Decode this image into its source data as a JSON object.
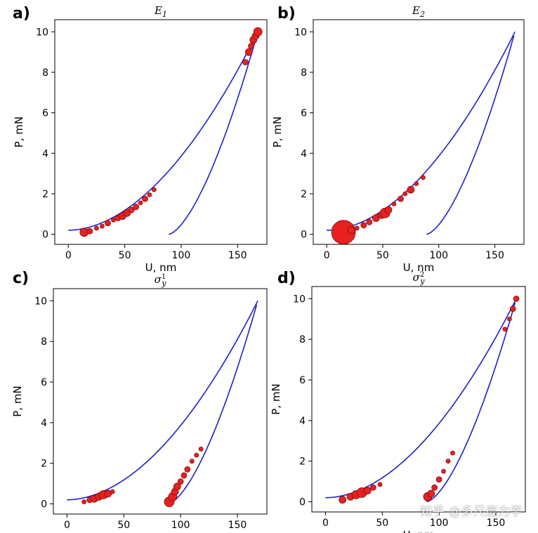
{
  "watermark": "知乎 @多尺度力学",
  "chart_data": [
    {
      "type": "scatter",
      "panel_label": "a)",
      "title_symbol": "E",
      "title_accent": "‾",
      "title_sub": "1",
      "title_sup": "",
      "xlabel": "U, nm",
      "ylabel": "P, mN",
      "xlim": [
        -12,
        176
      ],
      "ylim": [
        -0.5,
        10.6
      ],
      "xticks": [
        0,
        50,
        100,
        150
      ],
      "yticks": [
        0,
        2,
        4,
        6,
        8,
        10
      ],
      "grid": false,
      "line_color": "#1f1fcc",
      "marker_color": "#e82020",
      "loading_curve": {
        "u_max": 168,
        "p_max": 10
      },
      "unloading_curve": {
        "u_start": 89,
        "p_max": 10
      },
      "markers": [
        {
          "u": 14,
          "p": 0.1,
          "size": 6
        },
        {
          "u": 19,
          "p": 0.15,
          "size": 4
        },
        {
          "u": 25,
          "p": 0.3,
          "size": 3
        },
        {
          "u": 30,
          "p": 0.4,
          "size": 3
        },
        {
          "u": 35,
          "p": 0.55,
          "size": 4
        },
        {
          "u": 40,
          "p": 0.7,
          "size": 3
        },
        {
          "u": 44,
          "p": 0.8,
          "size": 4
        },
        {
          "u": 48,
          "p": 0.9,
          "size": 5
        },
        {
          "u": 52,
          "p": 1.05,
          "size": 5
        },
        {
          "u": 56,
          "p": 1.2,
          "size": 4
        },
        {
          "u": 60,
          "p": 1.35,
          "size": 4
        },
        {
          "u": 64,
          "p": 1.55,
          "size": 3
        },
        {
          "u": 68,
          "p": 1.75,
          "size": 4
        },
        {
          "u": 72,
          "p": 1.95,
          "size": 3
        },
        {
          "u": 76,
          "p": 2.2,
          "size": 3
        },
        {
          "u": 157,
          "p": 8.5,
          "size": 4
        },
        {
          "u": 160,
          "p": 9.0,
          "size": 5
        },
        {
          "u": 162,
          "p": 9.3,
          "size": 4
        },
        {
          "u": 164,
          "p": 9.6,
          "size": 5
        },
        {
          "u": 166,
          "p": 9.8,
          "size": 5
        },
        {
          "u": 168,
          "p": 10.0,
          "size": 6
        }
      ]
    },
    {
      "type": "scatter",
      "panel_label": "b)",
      "title_symbol": "E",
      "title_accent": "‾",
      "title_sub": "2",
      "title_sup": "",
      "xlabel": "U, nm",
      "ylabel": "P, mN",
      "xlim": [
        -12,
        176
      ],
      "ylim": [
        -0.5,
        10.6
      ],
      "xticks": [
        0,
        50,
        100,
        150
      ],
      "yticks": [
        0,
        2,
        4,
        6,
        8,
        10
      ],
      "grid": false,
      "line_color": "#1f1fcc",
      "marker_color": "#e82020",
      "loading_curve": {
        "u_max": 168,
        "p_max": 10
      },
      "unloading_curve": {
        "u_start": 89,
        "p_max": 10
      },
      "markers": [
        {
          "u": 15,
          "p": 0.1,
          "size": 17
        },
        {
          "u": 22,
          "p": 0.2,
          "size": 5
        },
        {
          "u": 27,
          "p": 0.3,
          "size": 3
        },
        {
          "u": 33,
          "p": 0.45,
          "size": 4
        },
        {
          "u": 38,
          "p": 0.6,
          "size": 4
        },
        {
          "u": 44,
          "p": 0.8,
          "size": 5
        },
        {
          "u": 49,
          "p": 0.95,
          "size": 5
        },
        {
          "u": 52,
          "p": 1.05,
          "size": 7
        },
        {
          "u": 55,
          "p": 1.2,
          "size": 5
        },
        {
          "u": 60,
          "p": 1.5,
          "size": 3
        },
        {
          "u": 66,
          "p": 1.75,
          "size": 4
        },
        {
          "u": 70,
          "p": 2.0,
          "size": 3
        },
        {
          "u": 75,
          "p": 2.2,
          "size": 5
        },
        {
          "u": 80,
          "p": 2.5,
          "size": 3
        },
        {
          "u": 86,
          "p": 2.8,
          "size": 3
        }
      ]
    },
    {
      "type": "scatter",
      "panel_label": "c)",
      "title_symbol": "σ",
      "title_accent": "",
      "title_sub": "y",
      "title_sup": "1",
      "xlabel": "U, nm",
      "ylabel": "P, mN",
      "xlim": [
        -12,
        176
      ],
      "ylim": [
        -0.5,
        10.6
      ],
      "xticks": [
        0,
        50,
        100,
        150
      ],
      "yticks": [
        0,
        2,
        4,
        6,
        8,
        10
      ],
      "grid": false,
      "line_color": "#1f1fcc",
      "marker_color": "#e82020",
      "loading_curve": {
        "u_max": 168,
        "p_max": 10
      },
      "unloading_curve": {
        "u_start": 89,
        "p_max": 10
      },
      "markers": [
        {
          "u": 15,
          "p": 0.1,
          "size": 3
        },
        {
          "u": 20,
          "p": 0.2,
          "size": 4
        },
        {
          "u": 24,
          "p": 0.25,
          "size": 5
        },
        {
          "u": 28,
          "p": 0.35,
          "size": 5
        },
        {
          "u": 32,
          "p": 0.45,
          "size": 6
        },
        {
          "u": 36,
          "p": 0.5,
          "size": 5
        },
        {
          "u": 40,
          "p": 0.6,
          "size": 3
        },
        {
          "u": 90,
          "p": 0.1,
          "size": 7
        },
        {
          "u": 93,
          "p": 0.35,
          "size": 6
        },
        {
          "u": 95,
          "p": 0.6,
          "size": 5
        },
        {
          "u": 97,
          "p": 0.85,
          "size": 5
        },
        {
          "u": 100,
          "p": 1.1,
          "size": 4
        },
        {
          "u": 103,
          "p": 1.4,
          "size": 4
        },
        {
          "u": 106,
          "p": 1.7,
          "size": 4
        },
        {
          "u": 110,
          "p": 2.1,
          "size": 3
        },
        {
          "u": 114,
          "p": 2.4,
          "size": 3
        },
        {
          "u": 118,
          "p": 2.7,
          "size": 3
        }
      ]
    },
    {
      "type": "scatter",
      "panel_label": "d)",
      "title_symbol": "σ",
      "title_accent": "",
      "title_sub": "y",
      "title_sup": "2",
      "xlabel": "U, nm",
      "ylabel": "P, mN",
      "xlim": [
        -12,
        176
      ],
      "ylim": [
        -0.5,
        10.6
      ],
      "xticks": [
        0,
        50,
        100,
        150
      ],
      "yticks": [
        0,
        2,
        4,
        6,
        8,
        10
      ],
      "grid": false,
      "line_color": "#1f1fcc",
      "marker_color": "#e82020",
      "loading_curve": {
        "u_max": 168,
        "p_max": 10
      },
      "unloading_curve": {
        "u_start": 89,
        "p_max": 10
      },
      "markers": [
        {
          "u": 15,
          "p": 0.1,
          "size": 5
        },
        {
          "u": 22,
          "p": 0.25,
          "size": 5
        },
        {
          "u": 27,
          "p": 0.35,
          "size": 6
        },
        {
          "u": 32,
          "p": 0.45,
          "size": 7
        },
        {
          "u": 37,
          "p": 0.55,
          "size": 5
        },
        {
          "u": 42,
          "p": 0.7,
          "size": 4
        },
        {
          "u": 48,
          "p": 0.85,
          "size": 3
        },
        {
          "u": 90,
          "p": 0.25,
          "size": 6
        },
        {
          "u": 93,
          "p": 0.4,
          "size": 5
        },
        {
          "u": 96,
          "p": 0.7,
          "size": 4
        },
        {
          "u": 100,
          "p": 1.1,
          "size": 4
        },
        {
          "u": 104,
          "p": 1.5,
          "size": 3
        },
        {
          "u": 108,
          "p": 2.0,
          "size": 3
        },
        {
          "u": 112,
          "p": 2.4,
          "size": 3
        },
        {
          "u": 158,
          "p": 8.5,
          "size": 3
        },
        {
          "u": 162,
          "p": 9.0,
          "size": 3
        },
        {
          "u": 165,
          "p": 9.5,
          "size": 4
        },
        {
          "u": 168,
          "p": 10.0,
          "size": 4
        }
      ]
    }
  ]
}
